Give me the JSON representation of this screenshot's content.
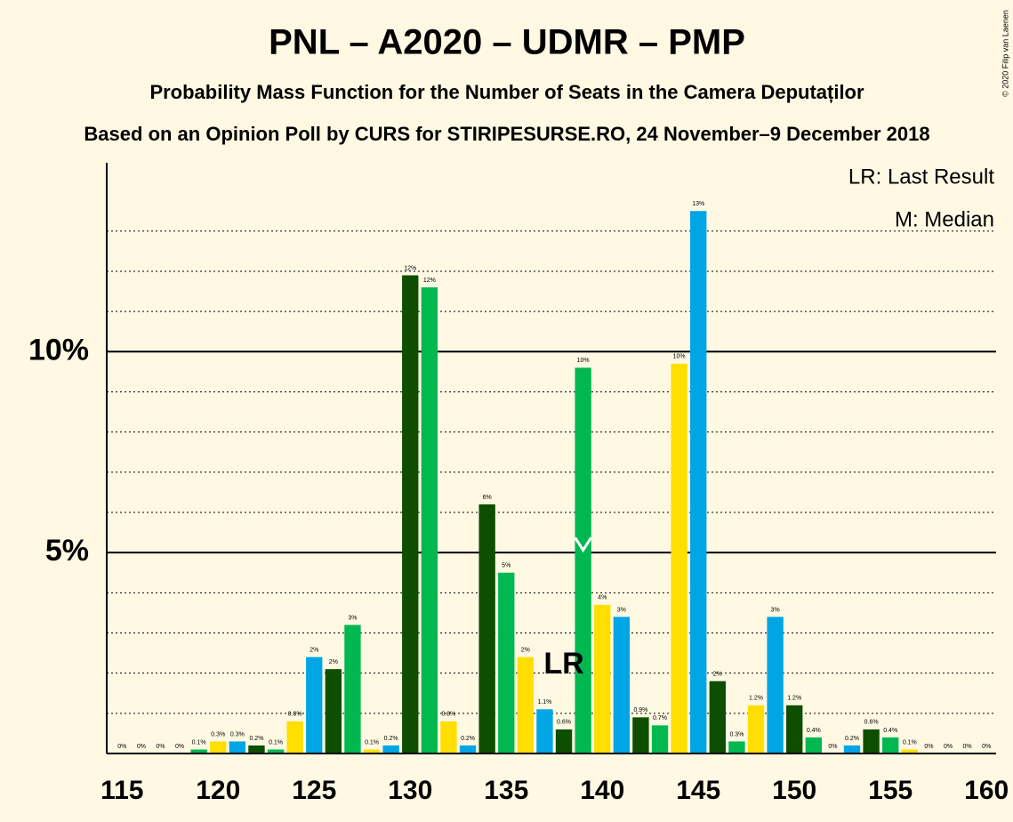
{
  "chart_data": {
    "type": "bar",
    "title": "PNL – A2020 – UDMR – PMP",
    "subtitle": "Probability Mass Function for the Number of Seats in the Camera Deputaților",
    "source": "Based on an Opinion Poll by CURS for STIRIPESURSE.RO, 24 November–9 December 2018",
    "copyright": "© 2020 Filip van Laenen",
    "legend_lr": "LR: Last Result",
    "legend_median": "M: Median",
    "lr_label": "LR",
    "last_result_x": 138,
    "median_x": 139,
    "x": [
      115,
      116,
      117,
      118,
      119,
      120,
      121,
      122,
      123,
      124,
      125,
      126,
      127,
      128,
      129,
      130,
      131,
      132,
      133,
      134,
      135,
      136,
      137,
      138,
      139,
      140,
      141,
      142,
      143,
      144,
      145,
      146,
      147,
      148,
      149,
      150,
      151,
      152,
      153,
      154,
      155,
      156,
      157,
      158,
      159,
      160
    ],
    "values": [
      0,
      0,
      0,
      0,
      0.1,
      0.3,
      0.3,
      0.2,
      0.1,
      0.8,
      2.4,
      2.1,
      3.2,
      0.1,
      0.2,
      11.9,
      11.6,
      0.8,
      0.2,
      6.2,
      4.5,
      2.4,
      1.1,
      0.6,
      9.6,
      3.7,
      3.4,
      0.9,
      0.7,
      9.7,
      13.5,
      1.8,
      0.3,
      1.2,
      3.4,
      1.2,
      0.4,
      0,
      0.2,
      0.6,
      0.4,
      0.1,
      0,
      0,
      0,
      0
    ],
    "value_labels": [
      "0%",
      "0%",
      "0%",
      "0%",
      "0.1%",
      "0.3%",
      "0.3%",
      "0.2%",
      "0.1%",
      "0.8%",
      "2%",
      "2%",
      "3%",
      "0.1%",
      "0.2%",
      "12%",
      "12%",
      "0.8%",
      "0.2%",
      "6%",
      "5%",
      "2%",
      "1.1%",
      "0.6%",
      "10%",
      "4%",
      "3%",
      "0.9%",
      "0.7%",
      "10%",
      "13%",
      "2%",
      "0.3%",
      "1.2%",
      "3%",
      "1.2%",
      "0.4%",
      "0%",
      "0.2%",
      "0.6%",
      "0.4%",
      "0.1%",
      "0%",
      "0%",
      "0%",
      "0%"
    ],
    "colors": [
      "#00b84f",
      "#ffde00",
      "#00a5e6",
      "#0e4e00",
      "#00b84f",
      "#ffde00",
      "#00a5e6",
      "#0e4e00",
      "#00b84f",
      "#ffde00",
      "#00a5e6",
      "#0e4e00",
      "#00b84f",
      "#ffde00",
      "#00a5e6",
      "#0e4e00",
      "#00b84f",
      "#ffde00",
      "#00a5e6",
      "#0e4e00",
      "#00b84f",
      "#ffde00",
      "#00a5e6",
      "#0e4e00",
      "#00b84f",
      "#ffde00",
      "#00a5e6",
      "#0e4e00",
      "#00b84f",
      "#ffde00",
      "#00a5e6",
      "#0e4e00",
      "#00b84f",
      "#ffde00",
      "#00a5e6",
      "#0e4e00",
      "#00b84f",
      "#ffde00",
      "#00a5e6",
      "#0e4e00",
      "#00b84f",
      "#ffde00",
      "#00a5e6",
      "#0e4e00",
      "#00b84f",
      "#ffde00"
    ],
    "xlim": [
      114.2,
      160.5
    ],
    "xticks": [
      115,
      120,
      125,
      130,
      135,
      140,
      145,
      150,
      155,
      160
    ],
    "ylim": [
      0,
      14.7
    ],
    "yticks": [
      {
        "value": 5,
        "label": "5%"
      },
      {
        "value": 10,
        "label": "10%"
      }
    ],
    "minor_yticks": [
      1,
      2,
      3,
      4,
      6,
      7,
      8,
      9,
      11,
      12,
      13
    ]
  }
}
